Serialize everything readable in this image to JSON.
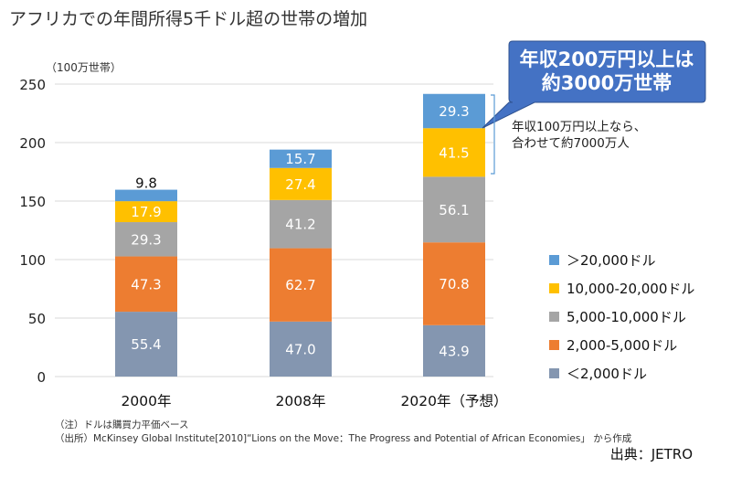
{
  "chart_data": {
    "type": "bar",
    "stacked": true,
    "title": "アフリカでの年間所得5千ドル超の世帯の増加",
    "ylabel": "（100万世帯）",
    "xlabel": "",
    "ylim": [
      0,
      250
    ],
    "yticks": [
      0,
      50,
      100,
      150,
      200,
      250
    ],
    "grid": true,
    "legend_position": "right",
    "categories": [
      "2000年",
      "2008年",
      "2020年（予想）"
    ],
    "series": [
      {
        "name": "＜2,000ドル",
        "color": "#8496B0",
        "values": [
          55.4,
          47.0,
          43.9
        ]
      },
      {
        "name": "2,000-5,000ドル",
        "color": "#ED7D31",
        "values": [
          47.3,
          62.7,
          70.8
        ]
      },
      {
        "name": "5,000-10,000ドル",
        "color": "#A5A5A5",
        "values": [
          29.3,
          41.2,
          56.1
        ]
      },
      {
        "name": "10,000-20,000ドル",
        "color": "#FFC000",
        "values": [
          17.9,
          27.4,
          41.5
        ]
      },
      {
        "name": "＞20,000ドル",
        "color": "#5B9BD5",
        "values": [
          9.8,
          15.7,
          29.3
        ]
      }
    ],
    "callout": "年収200万円以上は\n約3000万世帯",
    "annotation": "年収100万円以上なら、\n合わせて約7000万人"
  },
  "notes": {
    "note1": "（注）ドルは購買力平価ベース",
    "note2": "（出所）McKinsey Global Institute[2010]“Lions on the Move：The Progress and Potential of African Economies」 から作成"
  },
  "source": "出典：JETRO"
}
